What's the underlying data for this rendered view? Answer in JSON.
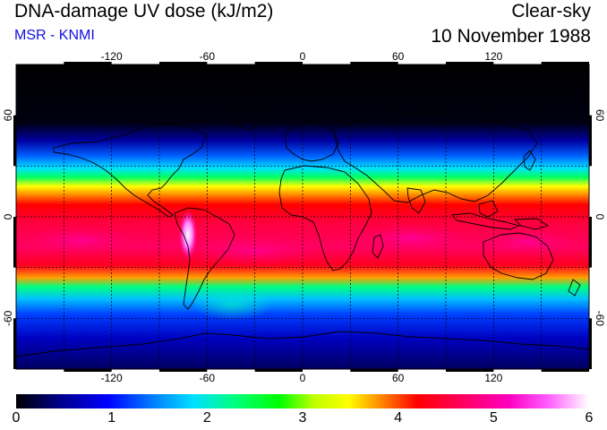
{
  "header": {
    "title": "DNA-damage UV dose (kJ/m2)",
    "subtitle": "MSR - KNMI",
    "subtitle_color": "#1010e0",
    "sky_condition": "Clear-sky",
    "date": "10 November 1988"
  },
  "map": {
    "projection": "equirectangular",
    "lon_range": [
      -180,
      180
    ],
    "lat_range": [
      -90,
      90
    ],
    "lon_ticks": [
      -120,
      -60,
      0,
      60,
      120
    ],
    "lat_ticks": [
      60,
      0,
      -60
    ],
    "lon_tick_labels": [
      "-120",
      "-60",
      "0",
      "60",
      "120"
    ],
    "lat_tick_labels_left": [
      "60",
      "0",
      "-60"
    ],
    "lat_tick_labels_right": [
      "60",
      "0",
      "-60"
    ],
    "gridlines": "dotted, every 30 degrees",
    "coastlines": true,
    "field": "DNA-damage UV dose",
    "peak_region": "southern Andes (Chile/Argentina), ~5.5-6 kJ/m2",
    "tropical_band": "~4-5.5 kJ/m2 between ~30S and ~10N",
    "high_northern_latitudes": "~0 kJ/m2 north of ~50N"
  },
  "colorbar": {
    "min": 0,
    "max": 6,
    "tick_labels": [
      "0",
      "1",
      "2",
      "3",
      "4",
      "5",
      "6"
    ],
    "colors": [
      "#000000",
      "#000080",
      "#0000ff",
      "#0080ff",
      "#00e0ff",
      "#00ff80",
      "#00ff00",
      "#c0ff00",
      "#ffff00",
      "#ff8000",
      "#ff0000",
      "#ff0060",
      "#ff00c0",
      "#ff60ff",
      "#ffffff"
    ]
  }
}
